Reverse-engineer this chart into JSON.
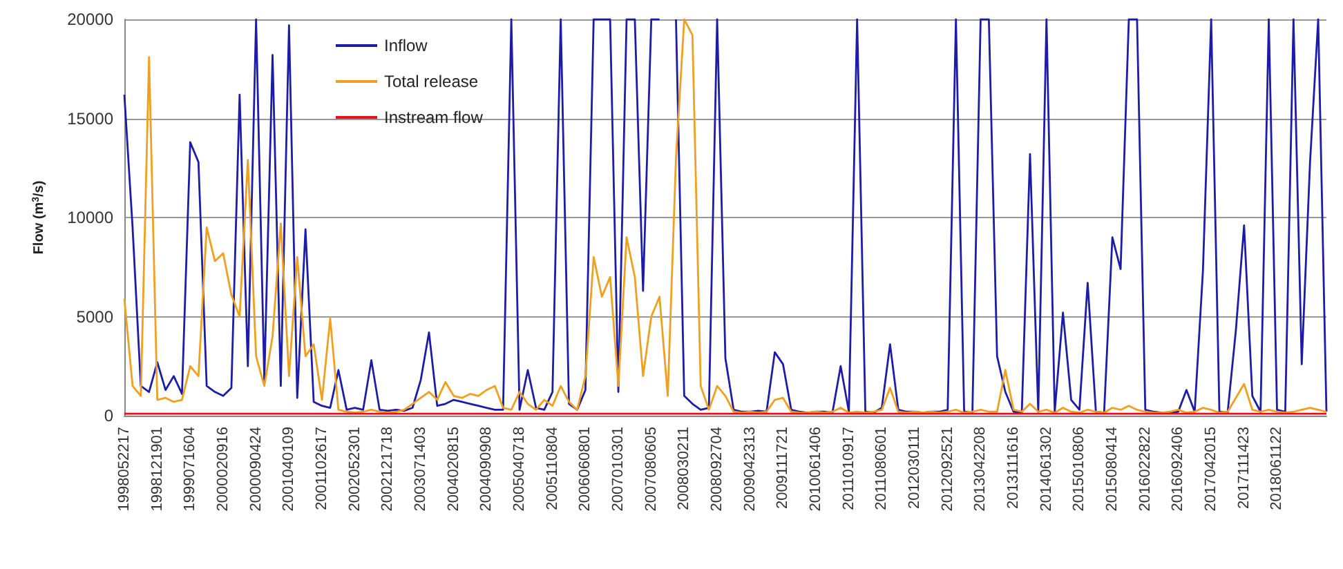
{
  "chart_data": {
    "type": "line",
    "ylabel": "Flow (m$^{3}$/s)",
    "categories": [
      "1998052217",
      null,
      null,
      null,
      "1998121901",
      null,
      null,
      null,
      "1999071604",
      null,
      null,
      null,
      "2000020916",
      null,
      null,
      null,
      "2000090424",
      null,
      null,
      null,
      "2001040109",
      null,
      null,
      null,
      "2001102617",
      null,
      null,
      null,
      "2002052301",
      null,
      null,
      null,
      "2002121718",
      null,
      null,
      null,
      "2003071403",
      null,
      null,
      null,
      "2004020815",
      null,
      null,
      null,
      "2004090908",
      null,
      null,
      null,
      "2005040718",
      null,
      null,
      null,
      "2005110804",
      null,
      null,
      null,
      "2006060801",
      null,
      null,
      null,
      "2007010301",
      null,
      null,
      null,
      "2007080605",
      null,
      null,
      null,
      "2008030211",
      null,
      null,
      null,
      "2008092704",
      null,
      null,
      null,
      "2009042313",
      null,
      null,
      null,
      "2009111721",
      null,
      null,
      null,
      "2010061406",
      null,
      null,
      null,
      "2011010917",
      null,
      null,
      null,
      "2011080601",
      null,
      null,
      null,
      "2012030111",
      null,
      null,
      null,
      "2012092521",
      null,
      null,
      null,
      "2013042208",
      null,
      null,
      null,
      "2013111616",
      null,
      null,
      null,
      "2014061302",
      null,
      null,
      null,
      "2015010806",
      null,
      null,
      null,
      "2015080414",
      null,
      null,
      null,
      "2016022822",
      null,
      null,
      null,
      "2016092406",
      null,
      null,
      null,
      "2017042015",
      null,
      null,
      null,
      "2017111423",
      null,
      null,
      null,
      "2018061122",
      null,
      null,
      null,
      null,
      null,
      null
    ],
    "series": [
      {
        "name": "Inflow",
        "color": "#1c1ca8",
        "values": [
          16200,
          9500,
          1500,
          1200,
          2700,
          1300,
          2000,
          1100,
          13800,
          12800,
          1500,
          1200,
          1000,
          1400,
          16200,
          2500,
          20000,
          1800,
          18200,
          1500,
          19700,
          900,
          9400,
          700,
          500,
          400,
          2300,
          300,
          400,
          300,
          2800,
          300,
          250,
          300,
          250,
          400,
          1800,
          4200,
          500,
          600,
          800,
          700,
          600,
          500,
          400,
          300,
          300,
          20000,
          300,
          2300,
          400,
          300,
          1200,
          20000,
          600,
          300,
          1300,
          20000,
          20000,
          20000,
          1200,
          20000,
          20000,
          6300,
          20000,
          20000,
          null,
          20000,
          1000,
          600,
          300,
          400,
          20000,
          2900,
          300,
          200,
          200,
          250,
          200,
          3200,
          2600,
          300,
          200,
          150,
          200,
          200,
          150,
          2500,
          200,
          20000,
          200,
          150,
          400,
          3600,
          300,
          200,
          200,
          150,
          200,
          200,
          300,
          20000,
          200,
          150,
          20000,
          20000,
          3000,
          1200,
          200,
          150,
          13200,
          200,
          20000,
          200,
          5200,
          800,
          300,
          6700,
          200,
          150,
          9000,
          7400,
          20000,
          20000,
          300,
          200,
          150,
          150,
          200,
          1300,
          200,
          7300,
          20000,
          200,
          150,
          4300,
          9600,
          1000,
          200,
          20000,
          300,
          200,
          20000,
          2600,
          12700,
          20000,
          200
        ]
      },
      {
        "name": "Total release",
        "color": "#f0a020",
        "values": [
          5900,
          1500,
          1000,
          18100,
          800,
          900,
          700,
          800,
          2500,
          2000,
          9500,
          7800,
          8200,
          6100,
          5000,
          12900,
          3000,
          1500,
          4000,
          9700,
          2000,
          8000,
          3000,
          3600,
          800,
          4900,
          300,
          200,
          150,
          200,
          300,
          200,
          150,
          200,
          300,
          600,
          900,
          1200,
          800,
          1700,
          1000,
          900,
          1100,
          1000,
          1300,
          1500,
          400,
          300,
          1200,
          600,
          300,
          800,
          500,
          1500,
          700,
          300,
          2000,
          8000,
          6000,
          7000,
          1500,
          9000,
          7000,
          2000,
          5000,
          6000,
          1000,
          13000,
          20000,
          19200,
          1500,
          300,
          1500,
          1000,
          200,
          150,
          200,
          150,
          200,
          800,
          900,
          200,
          150,
          150,
          200,
          150,
          200,
          400,
          150,
          200,
          150,
          200,
          300,
          1400,
          200,
          150,
          200,
          150,
          200,
          150,
          200,
          300,
          150,
          200,
          300,
          200,
          200,
          2300,
          300,
          200,
          600,
          200,
          300,
          150,
          400,
          200,
          150,
          300,
          200,
          150,
          400,
          300,
          500,
          300,
          200,
          150,
          150,
          200,
          300,
          150,
          200,
          400,
          300,
          150,
          200,
          900,
          1600,
          300,
          200,
          300,
          200,
          150,
          200,
          300,
          400,
          300,
          200
        ]
      },
      {
        "name": "Instream flow",
        "color": "#e81010",
        "values": [
          100,
          100,
          100,
          100,
          100,
          100,
          100,
          100,
          100,
          100,
          100,
          100,
          100,
          100,
          100,
          100,
          100,
          100,
          100,
          100,
          100,
          100,
          100,
          100,
          100,
          100,
          100,
          100,
          100,
          100,
          100,
          100,
          100,
          100,
          100,
          100,
          100,
          100,
          100,
          100,
          100,
          100,
          100,
          100,
          100,
          100,
          100,
          100,
          100,
          100,
          100,
          100,
          100,
          100,
          100,
          100,
          100,
          100,
          100,
          100,
          100,
          100,
          100,
          100,
          100,
          100,
          100,
          100,
          100,
          100,
          100,
          100,
          100,
          100,
          100,
          100,
          100,
          100,
          100,
          100,
          100,
          100,
          100,
          100,
          100,
          100,
          100,
          100,
          100,
          100,
          100,
          100,
          100,
          100,
          100,
          100,
          100,
          100,
          100,
          100,
          100,
          100,
          100,
          100,
          100,
          100,
          100,
          100,
          100,
          100,
          100,
          100,
          100,
          100,
          100,
          100,
          100,
          100,
          100,
          100,
          100,
          100,
          100,
          100,
          100,
          100,
          100,
          100,
          100,
          100,
          100,
          100,
          100,
          100,
          100,
          100,
          100,
          100,
          100,
          100,
          100,
          100,
          100,
          100,
          100,
          100,
          100
        ]
      }
    ],
    "ylim": [
      0,
      20000
    ],
    "yticks": [
      0,
      5000,
      10000,
      15000,
      20000
    ],
    "grid": "y",
    "legend": "top left",
    "marker": "none",
    "line_style": "solid"
  }
}
